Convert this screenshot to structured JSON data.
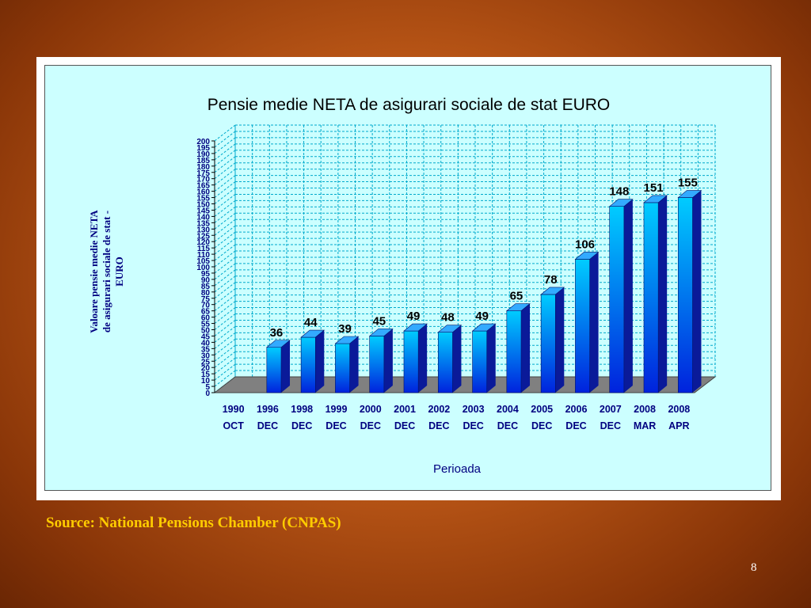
{
  "slide": {
    "source": "Source:  National Pensions Chamber (CNPAS)",
    "page_number": "8"
  },
  "colors": {
    "slide_bg": "#b85516",
    "chart_bg": "#ccffff",
    "grid": "#00aacc",
    "floor": "#808080",
    "bar_front_top": "#00ccff",
    "bar_front_bottom": "#0022dd",
    "bar_side": "#0a1a99",
    "bar_top": "#33aaff",
    "title": "#000000",
    "axis_text": "#000080",
    "source_text": "#ffcc00"
  },
  "chart_data": {
    "type": "bar",
    "title": "Pensie medie NETA de asigurari sociale de stat EURO",
    "xlabel": "Perioada",
    "ylabel": [
      "Valoare pensie medie NETA",
      "de asigurari sociale de stat -",
      "EURO"
    ],
    "ylim": [
      0,
      200
    ],
    "ytick_step": 5,
    "grid": true,
    "categories": [
      [
        "1990",
        "OCT"
      ],
      [
        "1996",
        "DEC"
      ],
      [
        "1998",
        "DEC"
      ],
      [
        "1999",
        "DEC"
      ],
      [
        "2000",
        "DEC"
      ],
      [
        "2001",
        "DEC"
      ],
      [
        "2002",
        "DEC"
      ],
      [
        "2003",
        "DEC"
      ],
      [
        "2004",
        "DEC"
      ],
      [
        "2005",
        "DEC"
      ],
      [
        "2006",
        "DEC"
      ],
      [
        "2007",
        "DEC"
      ],
      [
        "2008",
        "MAR"
      ],
      [
        "2008",
        "APR"
      ]
    ],
    "values": [
      null,
      36,
      44,
      39,
      45,
      49,
      48,
      49,
      65,
      78,
      106,
      148,
      151,
      155
    ]
  }
}
